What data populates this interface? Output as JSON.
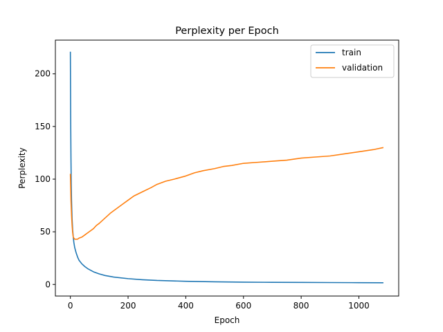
{
  "chart_data": {
    "type": "line",
    "title": "Perplexity per Epoch",
    "xlabel": "Epoch",
    "ylabel": "Perplexity",
    "xlim": [
      -52,
      1138
    ],
    "ylim": [
      -11,
      232
    ],
    "xticks": [
      0,
      200,
      400,
      600,
      800,
      1000
    ],
    "yticks": [
      0,
      50,
      100,
      150,
      200
    ],
    "grid": false,
    "legend_position": "top-right",
    "series": [
      {
        "name": "train",
        "color": "#1f77b4",
        "x": [
          0,
          1,
          2,
          3,
          4,
          5,
          6,
          8,
          10,
          12,
          15,
          20,
          25,
          30,
          40,
          50,
          60,
          80,
          100,
          120,
          150,
          200,
          250,
          300,
          400,
          500,
          600,
          700,
          800,
          900,
          1000,
          1085
        ],
        "y": [
          221,
          160,
          120,
          95,
          80,
          70,
          62,
          52,
          45,
          40,
          35,
          30,
          26,
          23,
          19.5,
          17,
          15,
          12,
          10,
          8.5,
          7,
          5.5,
          4.5,
          3.8,
          3,
          2.5,
          2.2,
          2,
          1.9,
          1.8,
          1.7,
          1.6
        ]
      },
      {
        "name": "validation",
        "color": "#ff7f0e",
        "x": [
          0,
          2,
          4,
          6,
          8,
          10,
          12,
          15,
          20,
          25,
          30,
          40,
          50,
          60,
          70,
          80,
          90,
          100,
          120,
          140,
          160,
          180,
          200,
          220,
          250,
          280,
          300,
          330,
          360,
          400,
          430,
          460,
          500,
          530,
          560,
          600,
          650,
          700,
          750,
          800,
          850,
          900,
          950,
          1000,
          1050,
          1085
        ],
        "y": [
          105,
          80,
          66,
          56,
          49,
          45,
          44,
          43,
          43,
          43,
          44,
          45,
          47,
          49,
          51,
          53,
          56,
          58,
          63,
          68,
          72,
          76,
          80,
          84,
          88,
          92,
          95,
          98,
          100,
          103,
          106,
          108,
          110,
          112,
          113,
          115,
          116,
          117,
          118,
          120,
          121,
          122,
          124,
          126,
          128,
          130
        ]
      }
    ]
  }
}
